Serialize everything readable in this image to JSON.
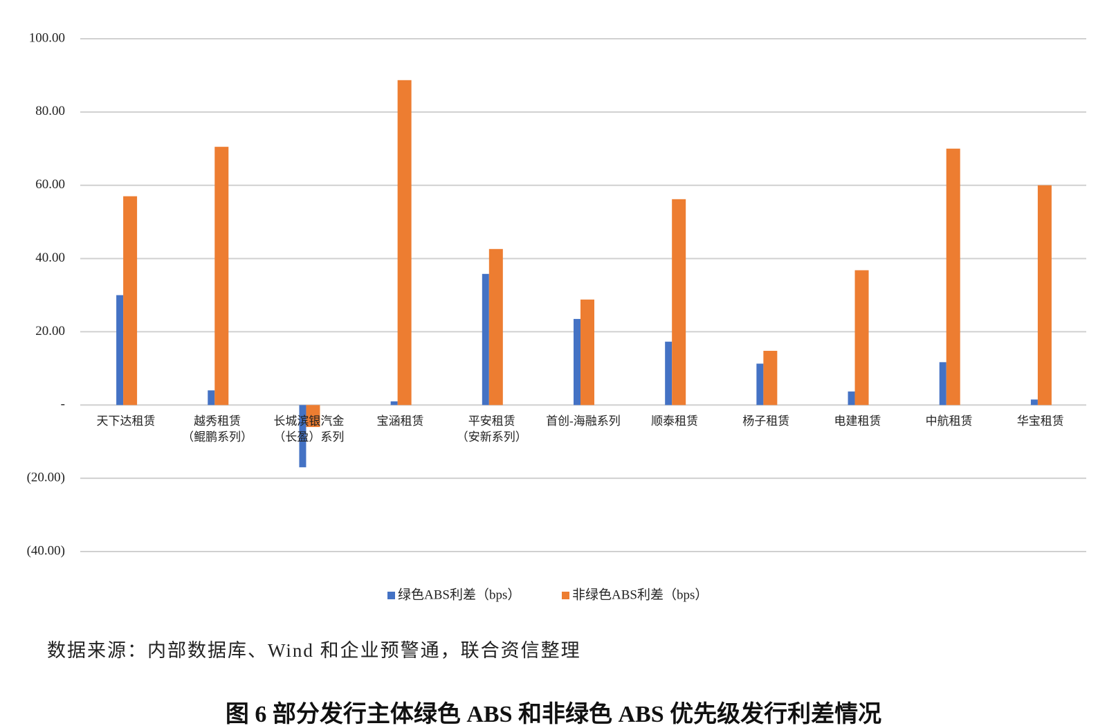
{
  "chart_data": {
    "type": "bar",
    "categories": [
      "天下达租赁",
      "越秀租赁\n（鲲鹏系列）",
      "长城滨银汽金\n（长盈）系列",
      "宝涵租赁",
      "平安租赁\n（安新系列）",
      "首创-海融系列",
      "顺泰租赁",
      "杨子租赁",
      "电建租赁",
      "中航租赁",
      "华宝租赁"
    ],
    "series": [
      {
        "name": "绿色ABS利差（bps）",
        "color": "#4472c4",
        "values": [
          30,
          4,
          -17,
          1,
          35.8,
          23.5,
          17.3,
          11.3,
          3.7,
          11.7,
          1.5
        ]
      },
      {
        "name": "非绿色ABS利差（bps）",
        "color": "#ed7d31",
        "values": [
          57,
          70.5,
          -6,
          88.7,
          42.6,
          28.8,
          56.2,
          14.8,
          36.8,
          70,
          60
        ]
      }
    ],
    "ylim": [
      -40,
      100
    ],
    "yticks": [
      {
        "value": -40,
        "label": "(40.00)"
      },
      {
        "value": -20,
        "label": "(20.00)"
      },
      {
        "value": 0,
        "label": "-"
      },
      {
        "value": 20,
        "label": "20.00"
      },
      {
        "value": 40,
        "label": "40.00"
      },
      {
        "value": 60,
        "label": "60.00"
      },
      {
        "value": 80,
        "label": "80.00"
      },
      {
        "value": 100,
        "label": "100.00"
      }
    ],
    "grid": true,
    "legend": "bottom"
  },
  "source": "数据来源：内部数据库、Wind 和企业预警通，联合资信整理",
  "caption": "图 6  部分发行主体绿色 ABS 和非绿色 ABS 优先级发行利差情况"
}
